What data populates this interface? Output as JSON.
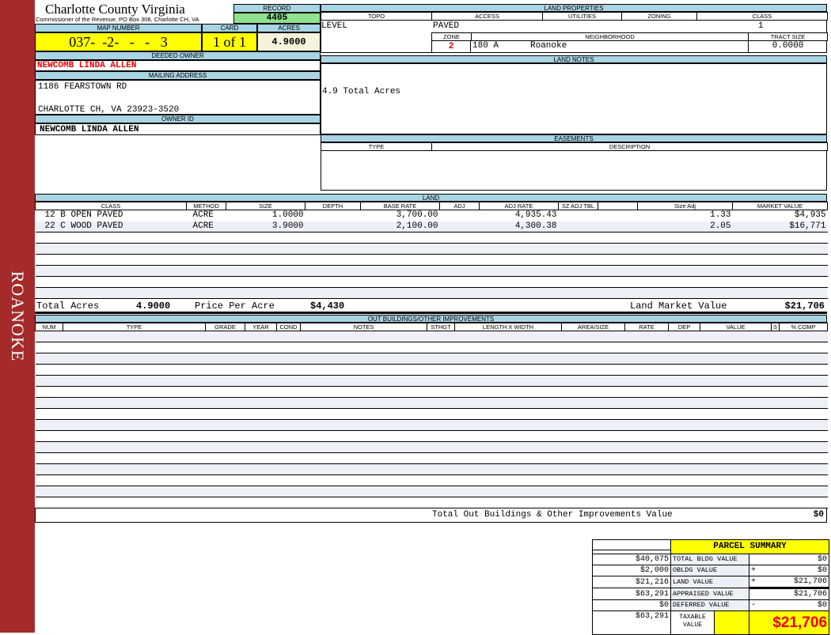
{
  "sidebar": {
    "label": "ROANOKE",
    "color": "#a52a2a"
  },
  "header": {
    "title": "Charlotte County Virginia",
    "subtitle": "Commissioner of the Revenue, PO Box 308, Charlotte CH, VA"
  },
  "record": {
    "label": "RECORD",
    "value": "4405"
  },
  "map": {
    "label": "MAP NUMBER",
    "value": "037-  -2-   -   -   3",
    "card_label": "CARD",
    "card_value": "1 of 1",
    "acres_label": "ACRES",
    "acres_value": "4.9000"
  },
  "owner": {
    "deeded_label": "DEEDED OWNER",
    "deeded_value": "NEWCOMB LINDA ALLEN",
    "mailing_label": "MAILING ADDRESS",
    "address_line1": "1186 FEARSTOWN RD",
    "address_line2": "CHARLOTTE CH, VA 23923-3520",
    "owner_id_label": "OWNER ID",
    "owner_id_value": "NEWCOMB LINDA ALLEN"
  },
  "land_properties": {
    "label": "LAND PROPERTIES",
    "topo_label": "TOPO",
    "access_label": "ACCESS",
    "utilities_label": "UTILITIES",
    "zoning_label": "ZONING",
    "class_label": "CLASS",
    "topo": "LEVEL",
    "access": "PAVED",
    "class": "1",
    "zone_label": "ZONE",
    "neighborhood_label": "NEIGHBORHOOD",
    "tract_label": "TRACT SIZE",
    "zone": "2",
    "neighborhood_code": "180 A",
    "neighborhood_name": "Roanoke",
    "tract_size": "0.0000"
  },
  "land_notes": {
    "label": "LAND NOTES",
    "text": "4.9 Total Acres"
  },
  "easements": {
    "label": "EASEMENTS",
    "type_label": "TYPE",
    "description_label": "DESCRIPTION"
  },
  "land": {
    "label": "LAND",
    "columns": [
      "CLASS",
      "METHOD",
      "SIZE",
      "DEPTH",
      "BASE RATE",
      "ADJ",
      "ADJ RATE",
      "SZ ADJ TBL",
      "",
      "Size Adj",
      "MARKET VALUE"
    ],
    "rows": [
      [
        "12 B OPEN PAVED",
        "ACRE",
        "1.0000",
        "",
        "3,700.00",
        "",
        "4,935.43",
        "",
        "",
        "1.33",
        "$4,935"
      ],
      [
        "22 C WOOD PAVED",
        "ACRE",
        "3.9000",
        "",
        "2,100.00",
        "",
        "4,300.38",
        "",
        "",
        "2.05",
        "$16,771"
      ]
    ],
    "total_acres_label": "Total Acres",
    "total_acres": "4.9000",
    "price_label": "Price Per Acre",
    "price": "$4,430",
    "market_label": "Land Market Value",
    "market": "$21,706"
  },
  "outbuildings": {
    "label": "OUT BUILDINGS/OTHER IMPROVEMENTS",
    "columns": [
      "NUM",
      "TYPE",
      "GRADE",
      "YEAR",
      "COND",
      "NOTES",
      "STHGT",
      "LENGTH X WIDTH",
      "AREA/SIZE",
      "RATE",
      "DEP",
      "VALUE",
      "S",
      "% COMP"
    ],
    "total_label": "Total Out Buildings & Other Improvements Value",
    "total": "$0"
  },
  "summary": {
    "title": "PARCEL SUMMARY",
    "left_values": [
      "$40,075",
      "$2,000",
      "$21,216",
      "$63,291",
      "$0",
      "$63,291"
    ],
    "rows": [
      {
        "label": "TOTAL BLDG VALUE",
        "sign": "",
        "value": "$0"
      },
      {
        "label": "OBLDG VALUE",
        "sign": "+",
        "value": "$0"
      },
      {
        "label": "LAND VALUE",
        "sign": "+",
        "value": "$21,706"
      },
      {
        "label": "APPRAISED VALUE",
        "sign": "",
        "value": "$21,706"
      },
      {
        "label": "DEFERRED VALUE",
        "sign": "-",
        "value": "$0"
      }
    ],
    "taxable_label": "TAXABLE VALUE",
    "taxable_value": "$21,706"
  }
}
